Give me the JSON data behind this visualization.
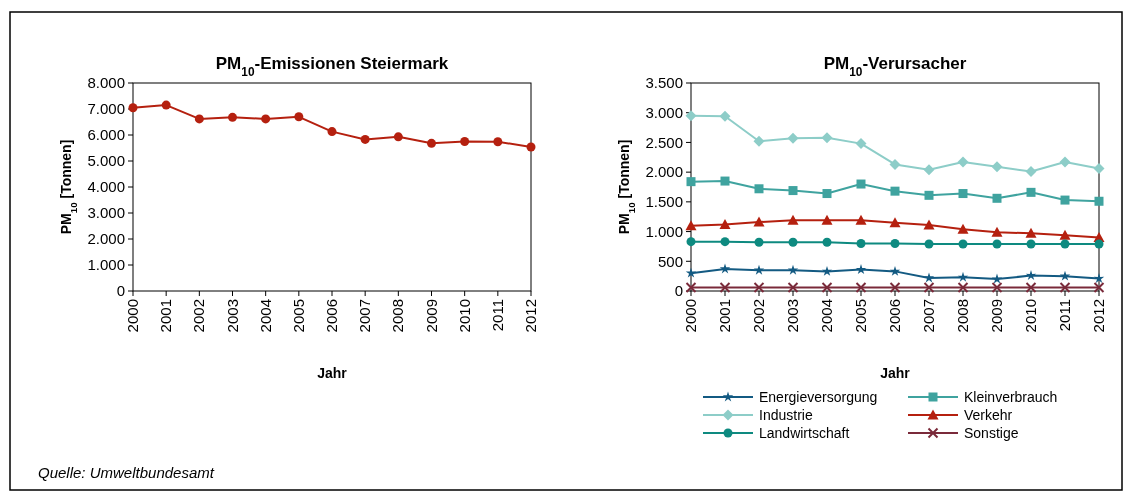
{
  "chart_data": [
    {
      "type": "line",
      "title": "PM$_{10}$-Emissionen Steiermark",
      "xlabel": "Jahr",
      "ylabel": "PM$_{10}$ [Tonnen]",
      "categories": [
        "2000",
        "2001",
        "2002",
        "2003",
        "2004",
        "2005",
        "2006",
        "2007",
        "2008",
        "2009",
        "2010",
        "2011",
        "2012"
      ],
      "series": [
        {
          "color": "#b5200f",
          "marker": "circle",
          "values": [
            7050,
            7150,
            6620,
            6680,
            6620,
            6700,
            6130,
            5830,
            5930,
            5680,
            5750,
            5740,
            5540
          ]
        }
      ],
      "ylim": [
        0,
        8000
      ],
      "yticks": [
        {
          "value": 0,
          "label": "0"
        },
        {
          "value": 1000,
          "label": "1.000"
        },
        {
          "value": 2000,
          "label": "2.000"
        },
        {
          "value": 3000,
          "label": "3.000"
        },
        {
          "value": 4000,
          "label": "4.000"
        },
        {
          "value": 5000,
          "label": "5.000"
        },
        {
          "value": 6000,
          "label": "6.000"
        },
        {
          "value": 7000,
          "label": "7.000"
        },
        {
          "value": 8000,
          "label": "8.000"
        }
      ],
      "grid": false,
      "legend": false,
      "annotations": [
        "Quelle: Umweltbundesamt"
      ]
    },
    {
      "type": "line",
      "title": "PM$_{10}$-Verursacher",
      "xlabel": "Jahr",
      "ylabel": "PM$_{10}$ [Tonnen]",
      "categories": [
        "2000",
        "2001",
        "2002",
        "2003",
        "2004",
        "2005",
        "2006",
        "2007",
        "2008",
        "2009",
        "2010",
        "2011",
        "2012"
      ],
      "series": [
        {
          "name": "Energieversorgung",
          "color": "#135a82",
          "marker": "star",
          "values": [
            300,
            370,
            350,
            350,
            330,
            360,
            330,
            220,
            230,
            200,
            260,
            250,
            210
          ]
        },
        {
          "name": "Kleinverbrauch",
          "color": "#3fa39f",
          "marker": "square",
          "values": [
            1840,
            1850,
            1720,
            1690,
            1640,
            1800,
            1680,
            1610,
            1640,
            1560,
            1660,
            1530,
            1510
          ]
        },
        {
          "name": "Industrie",
          "color": "#8dcdc8",
          "marker": "diamond",
          "values": [
            2950,
            2940,
            2520,
            2570,
            2580,
            2480,
            2130,
            2040,
            2170,
            2090,
            2010,
            2170,
            2060
          ]
        },
        {
          "name": "Verkehr",
          "color": "#b5200f",
          "marker": "triangle",
          "values": [
            1100,
            1120,
            1160,
            1190,
            1190,
            1190,
            1150,
            1110,
            1040,
            990,
            970,
            940,
            900
          ]
        },
        {
          "name": "Landwirtschaft",
          "color": "#0e8a80",
          "marker": "circle",
          "values": [
            830,
            830,
            820,
            820,
            820,
            800,
            800,
            790,
            790,
            790,
            790,
            790,
            790
          ]
        },
        {
          "name": "Sonstige",
          "color": "#7a2a3a",
          "marker": "cross",
          "values": [
            60,
            60,
            60,
            60,
            60,
            60,
            60,
            60,
            60,
            60,
            60,
            60,
            60
          ]
        }
      ],
      "ylim": [
        0,
        3500
      ],
      "yticks": [
        {
          "value": 0,
          "label": "0"
        },
        {
          "value": 500,
          "label": "500"
        },
        {
          "value": 1000,
          "label": "1.000"
        },
        {
          "value": 1500,
          "label": "1.500"
        },
        {
          "value": 2000,
          "label": "2.000"
        },
        {
          "value": 2500,
          "label": "2.500"
        },
        {
          "value": 3000,
          "label": "3.000"
        },
        {
          "value": 3500,
          "label": "3.500"
        }
      ],
      "grid": false,
      "legend": "bottom"
    }
  ]
}
